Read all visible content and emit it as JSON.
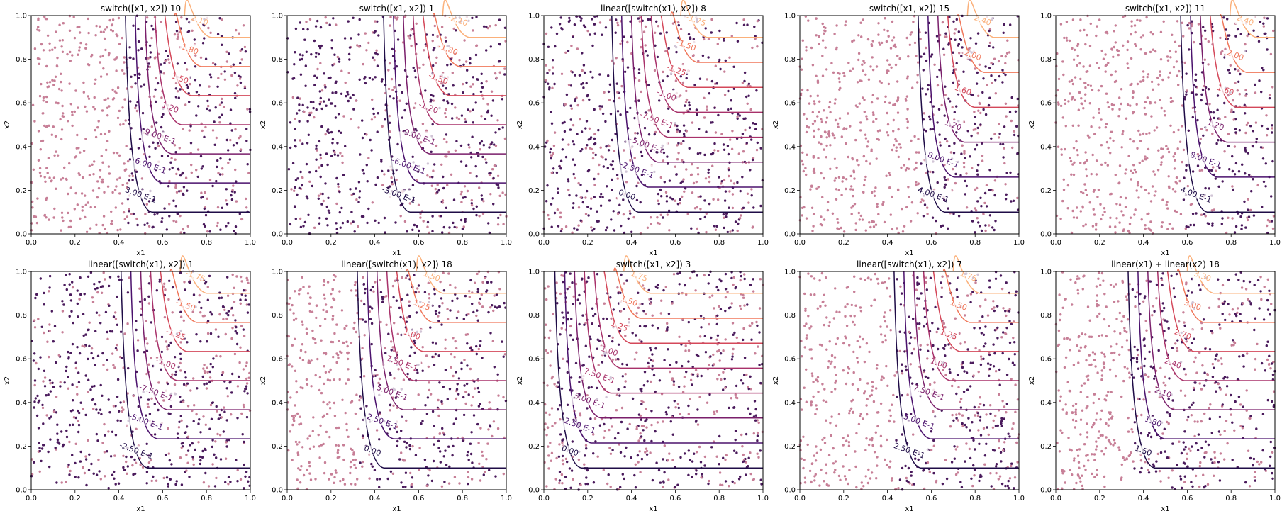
{
  "chart_data": [
    {
      "type": "scatter",
      "title": "switch([x1, x2]) 10",
      "xlabel": "x1",
      "ylabel": "x2",
      "xlim": [
        0,
        1
      ],
      "ylim": [
        0,
        1
      ],
      "x_ticks": [
        "0.0",
        "0.2",
        "0.4",
        "0.6",
        "0.8",
        "1.0"
      ],
      "y_ticks": [
        "0.0",
        "0.2",
        "0.4",
        "0.6",
        "0.8",
        "1.0"
      ],
      "contour_labels": [
        "3.00 E-1",
        "6.00 E-1",
        "9.00 E-1",
        "1.20",
        "1.50",
        "1.80",
        "2.10"
      ],
      "grid": false
    },
    {
      "type": "scatter",
      "title": "switch([x1, x2]) 1",
      "xlabel": "x1",
      "ylabel": "x2",
      "xlim": [
        0,
        1
      ],
      "ylim": [
        0,
        1
      ],
      "x_ticks": [
        "0.0",
        "0.2",
        "0.4",
        "0.6",
        "0.8",
        "1.0"
      ],
      "y_ticks": [
        "0.0",
        "0.2",
        "0.4",
        "0.6",
        "0.8",
        "1.0"
      ],
      "contour_labels": [
        "-3.00 E-1",
        "-6.00 E-1",
        "-9.00 E-1",
        "-1.20",
        "-1.50",
        "-1.80",
        "-2.10"
      ],
      "grid": false
    },
    {
      "type": "scatter",
      "title": "linear([switch(x1), x2]) 8",
      "xlabel": "x1",
      "ylabel": "x2",
      "xlim": [
        0,
        1
      ],
      "ylim": [
        0,
        1
      ],
      "x_ticks": [
        "0.0",
        "0.2",
        "0.4",
        "0.6",
        "0.8",
        "1.0"
      ],
      "y_ticks": [
        "0.0",
        "0.2",
        "0.4",
        "0.6",
        "0.8",
        "1.0"
      ],
      "contour_labels": [
        "0.00",
        "-2.50 E-1",
        "-5.00 E-1",
        "-7.50 E-1",
        "-1.00",
        "-1.25",
        "-1.50",
        "-1.75"
      ],
      "grid": false
    },
    {
      "type": "scatter",
      "title": "switch([x1, x2]) 15",
      "xlabel": "x1",
      "ylabel": "x2",
      "xlim": [
        0,
        1
      ],
      "ylim": [
        0,
        1
      ],
      "x_ticks": [
        "0.0",
        "0.2",
        "0.4",
        "0.6",
        "0.8",
        "1.0"
      ],
      "y_ticks": [
        "0.0",
        "0.2",
        "0.4",
        "0.6",
        "0.8",
        "1.0"
      ],
      "contour_labels": [
        "4.00 E-1",
        "8.00 E-1",
        "1.20",
        "1.60",
        "2.00",
        "2.40"
      ],
      "grid": false
    },
    {
      "type": "scatter",
      "title": "switch([x1, x2]) 11",
      "xlabel": "x1",
      "ylabel": "x2",
      "xlim": [
        0,
        1
      ],
      "ylim": [
        0,
        1
      ],
      "x_ticks": [
        "0.0",
        "0.2",
        "0.4",
        "0.6",
        "0.8",
        "1.0"
      ],
      "y_ticks": [
        "0.0",
        "0.2",
        "0.4",
        "0.6",
        "0.8",
        "1.0"
      ],
      "contour_labels": [
        "4.00 E-1",
        "8.00 E-1",
        "1.20",
        "1.60",
        "2.00",
        "2.40"
      ],
      "grid": false
    },
    {
      "type": "scatter",
      "title": "linear([switch(x1), x2]) 1",
      "xlabel": "x1",
      "ylabel": "x2",
      "xlim": [
        0,
        1
      ],
      "ylim": [
        0,
        1
      ],
      "x_ticks": [
        "0.0",
        "0.2",
        "0.4",
        "0.6",
        "0.8",
        "1.0"
      ],
      "y_ticks": [
        "0.0",
        "0.2",
        "0.4",
        "0.6",
        "0.8",
        "1.0"
      ],
      "contour_labels": [
        "-2.50 E-1",
        "-5.00 E-1",
        "-7.50 E-1",
        "-1.00",
        "-1.25",
        "-1.50",
        "-1.75"
      ],
      "grid": false
    },
    {
      "type": "scatter",
      "title": "linear([switch(x1), x2]) 18",
      "xlabel": "x1",
      "ylabel": "x2",
      "xlim": [
        0,
        1
      ],
      "ylim": [
        0,
        1
      ],
      "x_ticks": [
        "0.0",
        "0.2",
        "0.4",
        "0.6",
        "0.8",
        "1.0"
      ],
      "y_ticks": [
        "0.0",
        "0.2",
        "0.4",
        "0.6",
        "0.8",
        "1.0"
      ],
      "contour_labels": [
        "0.00",
        "2.50 E-1",
        "5.00 E-1",
        "7.50 E-1",
        "1.00",
        "1.25",
        "1.50"
      ],
      "grid": false
    },
    {
      "type": "scatter",
      "title": "switch([x1, x2]) 3",
      "xlabel": "x1",
      "ylabel": "x2",
      "xlim": [
        0,
        1
      ],
      "ylim": [
        0,
        1
      ],
      "x_ticks": [
        "0.0",
        "0.2",
        "0.4",
        "0.6",
        "0.8",
        "1.0"
      ],
      "y_ticks": [
        "0.0",
        "0.2",
        "0.4",
        "0.6",
        "0.8",
        "1.0"
      ],
      "contour_labels": [
        "0.00",
        "2.50 E-1",
        "5.00 E-1",
        "7.50 E-1",
        "1.00",
        "1.25",
        "1.50",
        "1.75"
      ],
      "grid": false
    },
    {
      "type": "scatter",
      "title": "linear([switch(x1), x2]) 7",
      "xlabel": "x1",
      "ylabel": "x2",
      "xlim": [
        0,
        1
      ],
      "ylim": [
        0,
        1
      ],
      "x_ticks": [
        "0.0",
        "0.2",
        "0.4",
        "0.6",
        "0.8",
        "1.0"
      ],
      "y_ticks": [
        "0.0",
        "0.2",
        "0.4",
        "0.6",
        "0.8",
        "1.0"
      ],
      "contour_labels": [
        "2.50 E-1",
        "5.00 E-1",
        "7.50 E-1",
        "1.00",
        "1.25",
        "1.50",
        "1.75"
      ],
      "grid": false
    },
    {
      "type": "scatter",
      "title": "linear(x1) + linear(x2) 18",
      "xlabel": "x1",
      "ylabel": "x2",
      "xlim": [
        0,
        1
      ],
      "ylim": [
        0,
        1
      ],
      "x_ticks": [
        "0.0",
        "0.2",
        "0.4",
        "0.6",
        "0.8",
        "1.0"
      ],
      "y_ticks": [
        "0.0",
        "0.2",
        "0.4",
        "0.6",
        "0.8",
        "1.0"
      ],
      "contour_labels": [
        "1.50",
        "1.80",
        "2.10",
        "2.40",
        "2.70",
        "3.00",
        "3.30"
      ],
      "grid": false
    }
  ],
  "colors": {
    "point_dark": "#4a1a5c",
    "point_light": "#c77f97",
    "contour": [
      "#1f0c47",
      "#4b126d",
      "#7a1f6b",
      "#a8316a",
      "#d4485a",
      "#f0775a",
      "#fbb07a"
    ]
  }
}
